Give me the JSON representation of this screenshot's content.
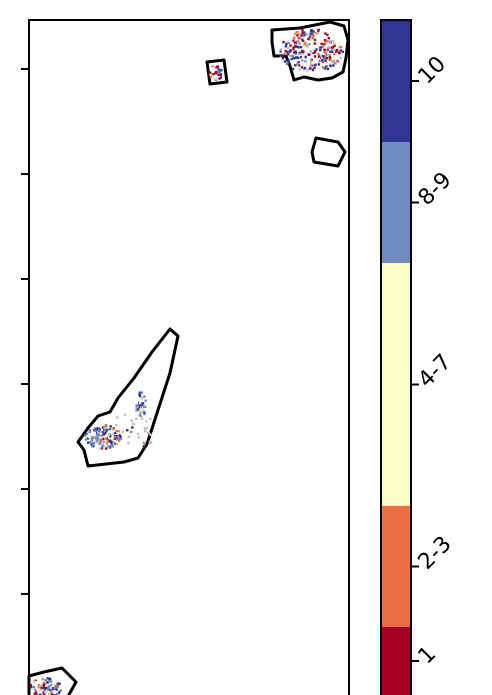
{
  "legend": {
    "bins": [
      {
        "label": "1",
        "color": "#a50026"
      },
      {
        "label": "2-3",
        "color": "#ea6f45"
      },
      {
        "label": "4-7",
        "color": "#feffc6"
      },
      {
        "label": "8-9",
        "color": "#6f8bc3"
      },
      {
        "label": "10",
        "color": "#313695"
      }
    ]
  },
  "colors": {
    "outline": "#000000",
    "scatter_gray": "#bdbdbd"
  }
}
